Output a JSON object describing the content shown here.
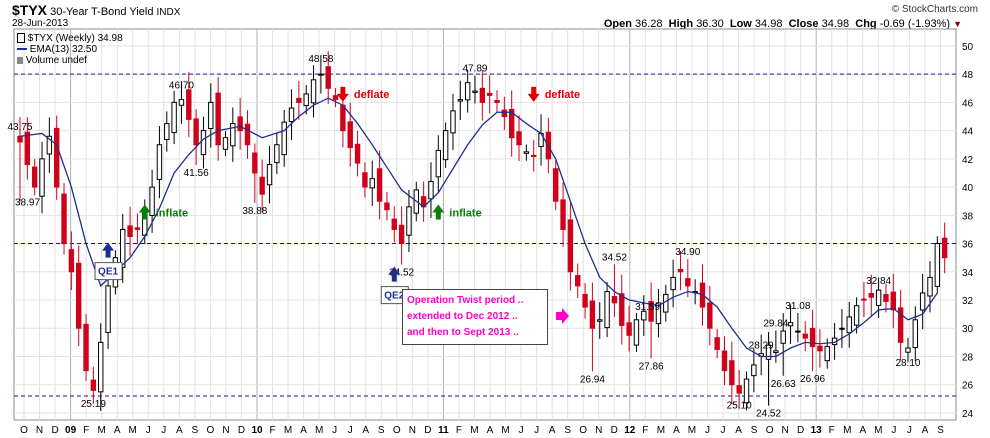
{
  "header": {
    "ticker": "$TYX",
    "name": "30-Year T-Bond Yield",
    "exchange": "INDX",
    "date": "28-Jun-2013",
    "watermark": "© StockCharts.com",
    "ohlc": {
      "open_label": "Open",
      "open": "36.28",
      "high_label": "High",
      "high": "36.30",
      "low_label": "Low",
      "low": "34.98",
      "close_label": "Close",
      "close": "34.98",
      "chg_label": "Chg",
      "chg": "-0.69 (-1.93%)"
    }
  },
  "legend": {
    "series_label": "$TYX (Weekly) 34.98",
    "ema_label": "EMA(13) 32.50",
    "volume_label": "Volume undef"
  },
  "chart_data": {
    "type": "candlestick",
    "ylim": [
      23.5,
      51.2
    ],
    "yticks": [
      24,
      26,
      28,
      30,
      32,
      34,
      36,
      38,
      40,
      42,
      44,
      46,
      48,
      50
    ],
    "x_labels": [
      "O",
      "N",
      "D",
      "09",
      "F",
      "M",
      "A",
      "M",
      "J",
      "J",
      "A",
      "S",
      "O",
      "N",
      "D",
      "10",
      "F",
      "M",
      "A",
      "M",
      "J",
      "J",
      "A",
      "S",
      "O",
      "N",
      "D",
      "11",
      "F",
      "M",
      "A",
      "M",
      "J",
      "J",
      "A",
      "S",
      "O",
      "N",
      "D",
      "12",
      "F",
      "M",
      "A",
      "M",
      "J",
      "J",
      "A",
      "S",
      "O",
      "N",
      "D",
      "13",
      "F",
      "M",
      "A",
      "M",
      "J",
      "J",
      "A",
      "S"
    ],
    "hlines": [
      48,
      36,
      25.2
    ],
    "close_path": [
      [
        0,
        43.2
      ],
      [
        2,
        40
      ],
      [
        3,
        42
      ],
      [
        4,
        43.6
      ],
      [
        5,
        40
      ],
      [
        6,
        36
      ],
      [
        7,
        34
      ],
      [
        8,
        30
      ],
      [
        9,
        27
      ],
      [
        10,
        25.6
      ],
      [
        11,
        29
      ],
      [
        12,
        33
      ],
      [
        13,
        35
      ],
      [
        14,
        37
      ],
      [
        15,
        36.5
      ],
      [
        16,
        37
      ],
      [
        17,
        38.5
      ],
      [
        18,
        40
      ],
      [
        19,
        43
      ],
      [
        20,
        44.5
      ],
      [
        21,
        46
      ],
      [
        22,
        46.2
      ],
      [
        23,
        44.8
      ],
      [
        24,
        43
      ],
      [
        25,
        44
      ],
      [
        26,
        46
      ],
      [
        27,
        43
      ],
      [
        28,
        43.5
      ],
      [
        29,
        44.5
      ],
      [
        30,
        44
      ],
      [
        31,
        43
      ],
      [
        32,
        41
      ],
      [
        33,
        39.5
      ],
      [
        34,
        41.6
      ],
      [
        35,
        43
      ],
      [
        36,
        44.6
      ],
      [
        37,
        45.6
      ],
      [
        38,
        46
      ],
      [
        39,
        46.6
      ],
      [
        40,
        47.6
      ],
      [
        41,
        48
      ],
      [
        42,
        47
      ],
      [
        43,
        46.2
      ],
      [
        44,
        44
      ],
      [
        45,
        42.8
      ],
      [
        46,
        41.7
      ],
      [
        47,
        40
      ],
      [
        48,
        40.6
      ],
      [
        49,
        39
      ],
      [
        50,
        38.4
      ],
      [
        51,
        37
      ],
      [
        52,
        36
      ],
      [
        53,
        38.6
      ],
      [
        54,
        39.8
      ],
      [
        55,
        38.6
      ],
      [
        56,
        40.4
      ],
      [
        57,
        42.6
      ],
      [
        58,
        44
      ],
      [
        59,
        45.4
      ],
      [
        60,
        46.2
      ],
      [
        61,
        47.4
      ],
      [
        62,
        46.8
      ],
      [
        63,
        46
      ],
      [
        64,
        46.5
      ],
      [
        65,
        46
      ],
      [
        66,
        45
      ],
      [
        67,
        43.5
      ],
      [
        68,
        43
      ],
      [
        69,
        42.5
      ],
      [
        70,
        42.2
      ],
      [
        71,
        43.8
      ],
      [
        72,
        42
      ],
      [
        73,
        39
      ],
      [
        74,
        37
      ],
      [
        75,
        34
      ],
      [
        76,
        33
      ],
      [
        77,
        31.5
      ],
      [
        78,
        30
      ],
      [
        79,
        30.6
      ],
      [
        80,
        32.6
      ],
      [
        81,
        31.8
      ],
      [
        82,
        30.2
      ],
      [
        83,
        29.5
      ],
      [
        84,
        30.6
      ],
      [
        85,
        31.2
      ],
      [
        86,
        30.5
      ],
      [
        87,
        31.8
      ],
      [
        88,
        32.4
      ],
      [
        89,
        33.6
      ],
      [
        90,
        34
      ],
      [
        91,
        33
      ],
      [
        92,
        32.6
      ],
      [
        93,
        31.5
      ],
      [
        94,
        30
      ],
      [
        95,
        28.5
      ],
      [
        96,
        27
      ],
      [
        97,
        26
      ],
      [
        98,
        25.4
      ],
      [
        99,
        26.4
      ],
      [
        100,
        27.4
      ],
      [
        101,
        28.2
      ],
      [
        102,
        28.8
      ],
      [
        103,
        28.4
      ],
      [
        104,
        29.8
      ],
      [
        105,
        30.4
      ],
      [
        106,
        29.8
      ],
      [
        107,
        29.3
      ],
      [
        108,
        28.7
      ],
      [
        109,
        28.4
      ],
      [
        110,
        28.7
      ],
      [
        111,
        29.3
      ],
      [
        112,
        30
      ],
      [
        113,
        30.8
      ],
      [
        114,
        31.6
      ],
      [
        115,
        32
      ],
      [
        116,
        32.2
      ],
      [
        117,
        32.7
      ],
      [
        118,
        31.9
      ],
      [
        119,
        31.3
      ],
      [
        120,
        29
      ],
      [
        121,
        28.6
      ],
      [
        122,
        30.6
      ],
      [
        123,
        32.5
      ],
      [
        124,
        33.6
      ],
      [
        125,
        36
      ],
      [
        126,
        35
      ]
    ],
    "ema_path": [
      [
        0,
        43.6
      ],
      [
        3,
        43.8
      ],
      [
        5,
        43
      ],
      [
        7,
        40
      ],
      [
        9,
        36
      ],
      [
        11,
        33
      ],
      [
        13,
        34
      ],
      [
        15,
        35
      ],
      [
        17,
        36.5
      ],
      [
        19,
        38.5
      ],
      [
        21,
        41
      ],
      [
        23,
        42.3
      ],
      [
        25,
        43.4
      ],
      [
        27,
        44
      ],
      [
        30,
        44.3
      ],
      [
        33,
        43.5
      ],
      [
        36,
        44
      ],
      [
        38,
        45
      ],
      [
        40,
        45.8
      ],
      [
        42,
        46.3
      ],
      [
        44,
        45.8
      ],
      [
        46,
        44.5
      ],
      [
        48,
        43
      ],
      [
        50,
        41.4
      ],
      [
        52,
        39.8
      ],
      [
        54,
        39
      ],
      [
        55,
        38.6
      ],
      [
        57,
        39.6
      ],
      [
        59,
        41.3
      ],
      [
        61,
        43
      ],
      [
        63,
        44.4
      ],
      [
        65,
        45.3
      ],
      [
        67,
        45.3
      ],
      [
        69,
        44.5
      ],
      [
        71,
        43.8
      ],
      [
        73,
        42
      ],
      [
        75,
        39
      ],
      [
        77,
        36
      ],
      [
        79,
        33.6
      ],
      [
        81,
        32.6
      ],
      [
        83,
        32
      ],
      [
        85,
        31.8
      ],
      [
        87,
        31.6
      ],
      [
        89,
        32.2
      ],
      [
        91,
        32.6
      ],
      [
        93,
        32.4
      ],
      [
        95,
        31.5
      ],
      [
        97,
        30
      ],
      [
        99,
        28.6
      ],
      [
        101,
        28
      ],
      [
        103,
        28
      ],
      [
        105,
        28.6
      ],
      [
        107,
        29
      ],
      [
        109,
        28.9
      ],
      [
        111,
        29
      ],
      [
        113,
        29.6
      ],
      [
        115,
        30.4
      ],
      [
        117,
        31.3
      ],
      [
        119,
        31.4
      ],
      [
        121,
        30.6
      ],
      [
        123,
        31
      ],
      [
        125,
        32.5
      ]
    ],
    "labels": [
      {
        "i": 0,
        "v": 43.75,
        "text": "43.75",
        "pos": "above"
      },
      {
        "i": 0,
        "v": 38.97,
        "text": "38.97",
        "pos": "left"
      },
      {
        "i": 10,
        "v": 25.19,
        "text": "25.19",
        "pos": "below"
      },
      {
        "i": 22,
        "v": 46.7,
        "text": "46.70",
        "pos": "above"
      },
      {
        "i": 24,
        "v": 41.56,
        "text": "41.56",
        "pos": "below"
      },
      {
        "i": 32,
        "v": 38.88,
        "text": "38.88",
        "pos": "below"
      },
      {
        "i": 41,
        "v": 48.58,
        "text": "48.58",
        "pos": "above"
      },
      {
        "i": 52,
        "v": 34.52,
        "text": "34.52",
        "pos": "below"
      },
      {
        "i": 62,
        "v": 47.89,
        "text": "47.89",
        "pos": "above"
      },
      {
        "i": 78,
        "v": 26.94,
        "text": "26.94",
        "pos": "below"
      },
      {
        "i": 81,
        "v": 34.52,
        "text": "34.52",
        "pos": "above"
      },
      {
        "i": 83,
        "v": 31.59,
        "text": "31.59",
        "pos": "right"
      },
      {
        "i": 86,
        "v": 27.86,
        "text": "27.86",
        "pos": "below"
      },
      {
        "i": 91,
        "v": 34.9,
        "text": "34.90",
        "pos": "above"
      },
      {
        "i": 98,
        "v": 25.1,
        "text": "25.10",
        "pos": "below"
      },
      {
        "i": 101,
        "v": 28.29,
        "text": "28.29",
        "pos": "above"
      },
      {
        "i": 102,
        "v": 24.52,
        "text": "24.52",
        "pos": "below"
      },
      {
        "i": 103,
        "v": 29.84,
        "text": "29.84",
        "pos": "above"
      },
      {
        "i": 104,
        "v": 26.63,
        "text": "26.63",
        "pos": "below"
      },
      {
        "i": 106,
        "v": 31.08,
        "text": "31.08",
        "pos": "above"
      },
      {
        "i": 108,
        "v": 26.96,
        "text": "26.96",
        "pos": "below"
      },
      {
        "i": 117,
        "v": 32.84,
        "text": "32.84",
        "pos": "above"
      },
      {
        "i": 121,
        "v": 28.1,
        "text": "28.10",
        "pos": "below"
      }
    ],
    "annotations": [
      {
        "text": "inflate",
        "color": "#0a7d0a",
        "arrow": "up",
        "i": 17,
        "v": 38.2
      },
      {
        "text": "inflate",
        "color": "#0a7d0a",
        "arrow": "up",
        "i": 57,
        "v": 38.2
      },
      {
        "text": "deflate",
        "color": "#e00000",
        "arrow": "down",
        "i": 44,
        "v": 46.6
      },
      {
        "text": "deflate",
        "color": "#e00000",
        "arrow": "down",
        "i": 70,
        "v": 46.6
      },
      {
        "text": "QE1",
        "color": "#1f2f8f",
        "arrow": "up",
        "i": 12,
        "v": 35.5
      },
      {
        "text": "QE2",
        "color": "#1f2f8f",
        "arrow": "up",
        "i": 51,
        "v": 33.8
      }
    ],
    "box": {
      "lines": [
        "Operation Twist period ..",
        "extended to Dec 2012 ..",
        "and then to Sept 2013 .."
      ],
      "color": "#ff00cc"
    }
  }
}
